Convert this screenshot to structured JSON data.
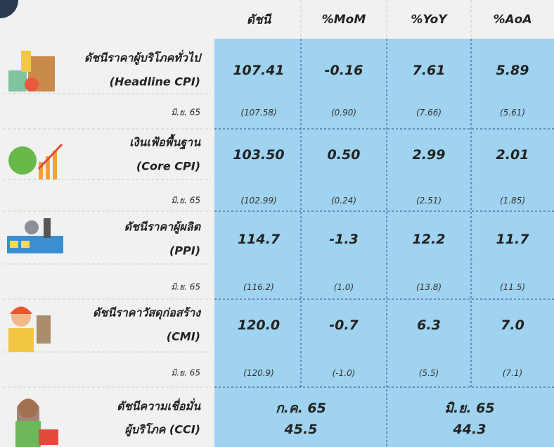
{
  "header": {
    "columns": [
      "ดัชนี",
      "%MoM",
      "%YoY",
      "%AoA"
    ]
  },
  "rows": [
    {
      "label": [
        "ดัชนีราคาผู้บริโภคทั่วไป",
        "(Headline CPI)"
      ],
      "values": [
        "107.41",
        "-0.16",
        "7.61",
        "5.89"
      ],
      "prev_label": "มิ.ย. 65",
      "prev_values": [
        "(107.58)",
        "(0.90)",
        "(7.66)",
        "(5.61)"
      ]
    },
    {
      "label": [
        "เงินเฟ้อพื้นฐาน",
        "(Core CPI)"
      ],
      "values": [
        "103.50",
        "0.50",
        "2.99",
        "2.01"
      ],
      "prev_label": "มิ.ย. 65",
      "prev_values": [
        "(102.99)",
        "(0.24)",
        "(2.51)",
        "(1.85)"
      ]
    },
    {
      "label": [
        "ดัชนีราคาผู้ผลิต",
        "(PPI)"
      ],
      "values": [
        "114.7",
        "-1.3",
        "12.2",
        "11.7"
      ],
      "prev_label": "มิ.ย. 65",
      "prev_values": [
        "(116.2)",
        "(1.0)",
        "(13.8)",
        "(11.5)"
      ]
    },
    {
      "label": [
        "ดัชนีราคาวัสดุก่อสร้าง",
        "(CMI)"
      ],
      "values": [
        "120.0",
        "-0.7",
        "6.3",
        "7.0"
      ],
      "prev_label": "มิ.ย. 65",
      "prev_values": [
        "(120.9)",
        "(-1.0)",
        "(5.5)",
        "(7.1)"
      ]
    }
  ],
  "cci": {
    "label": [
      "ดัชนีความเชื่อมั่น",
      "ผู้บริโภค (CCI)"
    ],
    "current": {
      "period": "ก.ค. 65",
      "value": "45.5"
    },
    "previous": {
      "period": "มิ.ย. 65",
      "value": "44.3"
    }
  }
}
